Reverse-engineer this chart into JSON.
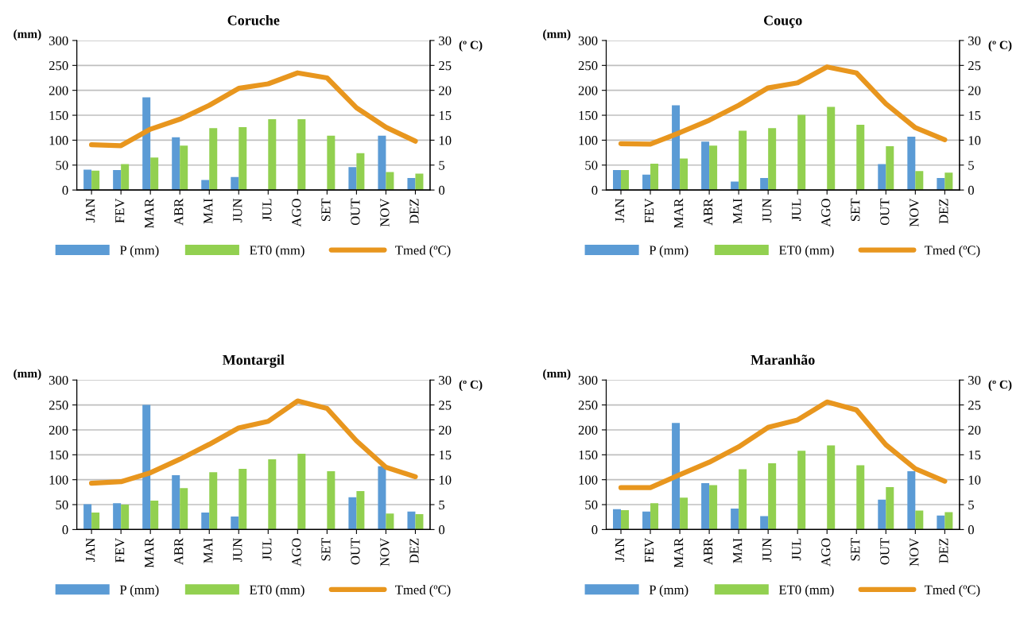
{
  "chart_data": [
    {
      "type": "bar",
      "title": "Coruche",
      "ylabel": "(mm)",
      "y2label": "(º C)",
      "categories": [
        "JAN",
        "FEV",
        "MAR",
        "ABR",
        "MAI",
        "JUN",
        "JUL",
        "AGO",
        "SET",
        "OUT",
        "NOV",
        "DEZ"
      ],
      "ylim": [
        0,
        300
      ],
      "yticks": [
        0,
        50,
        100,
        150,
        200,
        250,
        300
      ],
      "y2lim": [
        0,
        30
      ],
      "y2ticks": [
        0,
        5,
        10,
        15,
        20,
        25,
        30
      ],
      "grid": "y",
      "legend": "bottom",
      "series": [
        {
          "name": "P (mm)",
          "color": "#5b9bd5",
          "values": [
            41,
            40,
            186,
            106,
            20,
            26,
            null,
            null,
            null,
            46,
            109,
            24
          ]
        },
        {
          "name": "ET0 (mm)",
          "color": "#92d050",
          "values": [
            39,
            52,
            65,
            89,
            124,
            126,
            142,
            142,
            109,
            74,
            36,
            33
          ]
        },
        {
          "name": "Tmed (ºC)",
          "type": "line",
          "axis": "y2",
          "color": "#e8961e",
          "values": [
            9.1,
            8.9,
            12.2,
            14.2,
            17.0,
            20.4,
            21.3,
            23.5,
            22.5,
            16.5,
            12.6,
            9.8
          ]
        }
      ]
    },
    {
      "type": "bar",
      "title": "Couço",
      "ylabel": "(mm)",
      "y2label": "(º C)",
      "categories": [
        "JAN",
        "FEV",
        "MAR",
        "ABR",
        "MAI",
        "JUN",
        "JUL",
        "AGO",
        "SET",
        "OUT",
        "NOV",
        "DEZ"
      ],
      "ylim": [
        0,
        300
      ],
      "yticks": [
        0,
        50,
        100,
        150,
        200,
        250,
        300
      ],
      "y2lim": [
        0,
        30
      ],
      "y2ticks": [
        0,
        5,
        10,
        15,
        20,
        25,
        30
      ],
      "grid": "y",
      "legend": "bottom",
      "series": [
        {
          "name": "P (mm)",
          "color": "#5b9bd5",
          "values": [
            40,
            31,
            170,
            97,
            17,
            24,
            null,
            null,
            null,
            52,
            107,
            24
          ]
        },
        {
          "name": "ET0 (mm)",
          "color": "#92d050",
          "values": [
            40,
            53,
            63,
            89,
            119,
            124,
            151,
            167,
            131,
            88,
            38,
            35
          ]
        },
        {
          "name": "Tmed (ºC)",
          "type": "line",
          "axis": "y2",
          "color": "#e8961e",
          "values": [
            9.3,
            9.2,
            11.5,
            14.0,
            17.0,
            20.5,
            21.5,
            24.7,
            23.5,
            17.3,
            12.5,
            10.1
          ]
        }
      ]
    },
    {
      "type": "bar",
      "title": "Montargil",
      "ylabel": "(mm)",
      "y2label": "(º C)",
      "categories": [
        "JAN",
        "FEV",
        "MAR",
        "ABR",
        "MAI",
        "JUN",
        "JUL",
        "AGO",
        "SET",
        "OUT",
        "NOV",
        "DEZ"
      ],
      "ylim": [
        0,
        300
      ],
      "yticks": [
        0,
        50,
        100,
        150,
        200,
        250,
        300
      ],
      "y2lim": [
        0,
        30
      ],
      "y2ticks": [
        0,
        5,
        10,
        15,
        20,
        25,
        30
      ],
      "grid": "y",
      "legend": "bottom",
      "series": [
        {
          "name": "P (mm)",
          "color": "#5b9bd5",
          "values": [
            51,
            53,
            250,
            109,
            34,
            26,
            null,
            null,
            null,
            65,
            127,
            36
          ]
        },
        {
          "name": "ET0 (mm)",
          "color": "#92d050",
          "values": [
            34,
            50,
            58,
            83,
            115,
            122,
            141,
            152,
            117,
            77,
            32,
            31
          ]
        },
        {
          "name": "Tmed (ºC)",
          "type": "line",
          "axis": "y2",
          "color": "#e8961e",
          "values": [
            9.3,
            9.6,
            11.4,
            14.1,
            17.1,
            20.4,
            21.7,
            25.8,
            24.3,
            17.8,
            12.5,
            10.6
          ]
        }
      ]
    },
    {
      "type": "bar",
      "title": "Maranhão",
      "ylabel": "(mm)",
      "y2label": "(º C)",
      "categories": [
        "JAN",
        "FEV",
        "MAR",
        "ABR",
        "MAI",
        "JUN",
        "JUL",
        "AGO",
        "SET",
        "OUT",
        "NOV",
        "DEZ"
      ],
      "ylim": [
        0,
        300
      ],
      "yticks": [
        0,
        50,
        100,
        150,
        200,
        250,
        300
      ],
      "y2lim": [
        0,
        30
      ],
      "y2ticks": [
        0,
        5,
        10,
        15,
        20,
        25,
        30
      ],
      "grid": "y",
      "legend": "bottom",
      "series": [
        {
          "name": "P (mm)",
          "color": "#5b9bd5",
          "values": [
            41,
            36,
            214,
            93,
            42,
            27,
            null,
            null,
            null,
            60,
            117,
            28
          ]
        },
        {
          "name": "ET0 (mm)",
          "color": "#92d050",
          "values": [
            39,
            53,
            64,
            89,
            121,
            133,
            158,
            169,
            129,
            85,
            38,
            35
          ]
        },
        {
          "name": "Tmed (ºC)",
          "type": "line",
          "axis": "y2",
          "color": "#e8961e",
          "values": [
            8.4,
            8.4,
            11.0,
            13.5,
            16.6,
            20.5,
            22.0,
            25.6,
            24.0,
            17.0,
            12.2,
            9.7
          ]
        }
      ]
    }
  ]
}
